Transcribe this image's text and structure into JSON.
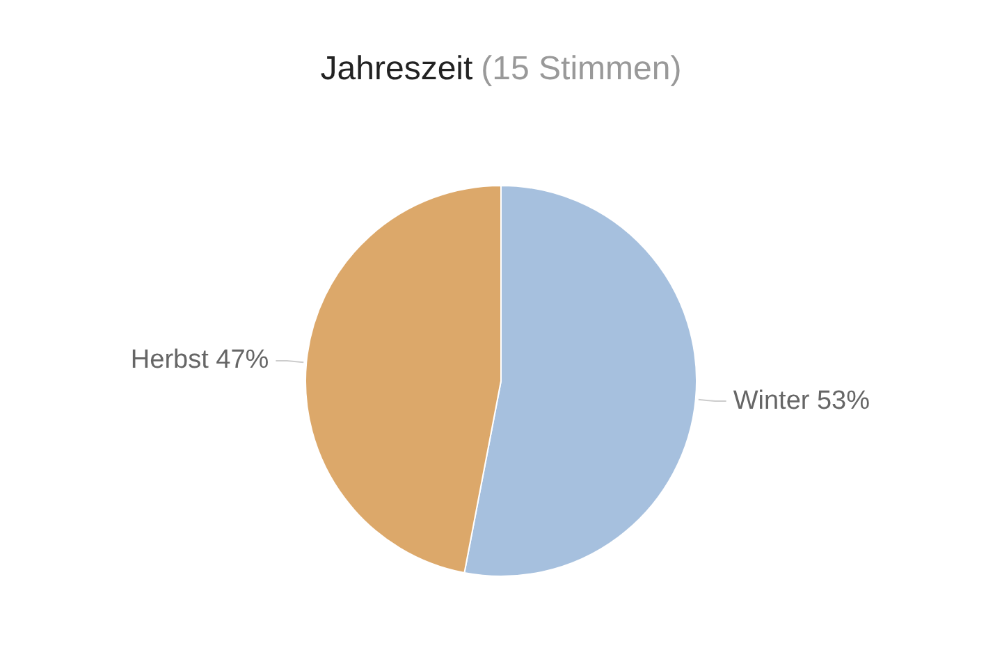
{
  "chart_data": {
    "type": "pie",
    "title": "Jahreszeit",
    "subtitle": "(15 Stimmen)",
    "categories": [
      "Winter",
      "Herbst"
    ],
    "values": [
      53,
      47
    ],
    "colors": [
      "#a6c0de",
      "#dca86a"
    ],
    "value_labels": [
      "53%",
      "47%"
    ],
    "legend": false
  }
}
